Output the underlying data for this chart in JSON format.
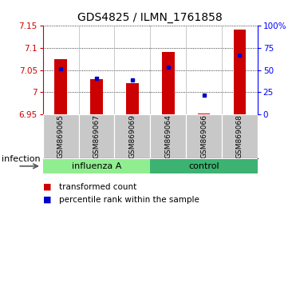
{
  "title": "GDS4825 / ILMN_1761858",
  "samples": [
    "GSM869065",
    "GSM869067",
    "GSM869069",
    "GSM869064",
    "GSM869066",
    "GSM869068"
  ],
  "red_values": [
    7.075,
    7.03,
    7.02,
    7.09,
    6.953,
    7.14
  ],
  "blue_values": [
    7.053,
    7.032,
    7.027,
    7.057,
    6.993,
    7.083
  ],
  "ymin": 6.95,
  "ymax": 7.15,
  "yticks_left": [
    6.95,
    7.0,
    7.05,
    7.1,
    7.15
  ],
  "ytick_labels_left": [
    "6.95",
    "7",
    "7.05",
    "7.1",
    "7.15"
  ],
  "right_ytick_percents": [
    0,
    25,
    50,
    75,
    100
  ],
  "right_ytick_labels": [
    "0",
    "25",
    "50",
    "75",
    "100%"
  ],
  "groups": [
    {
      "label": "influenza A",
      "indices": [
        0,
        1,
        2
      ],
      "color": "#90EE90"
    },
    {
      "label": "control",
      "indices": [
        3,
        4,
        5
      ],
      "color": "#3CB371"
    }
  ],
  "group_label": "infection",
  "bar_color": "#CC0000",
  "dot_color": "#0000CC",
  "sample_box_color": "#C8C8C8",
  "plot_bg": "#FFFFFF",
  "title_fontsize": 10,
  "axis_tick_fontsize": 7.5,
  "sample_fontsize": 6.5,
  "group_fontsize": 8,
  "legend_fontsize": 7.5
}
